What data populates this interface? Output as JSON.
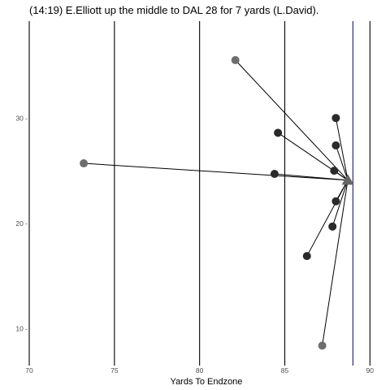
{
  "chart_data": {
    "type": "scatter",
    "title": "(14:19) E.Elliott up the middle to DAL 28 for 7 yards (L.David).",
    "xlabel": "Yards To Endzone",
    "ylabel": "",
    "xlim": [
      70,
      90.7
    ],
    "ylim": [
      6.5,
      39.2
    ],
    "x_ticks": [
      70,
      75,
      80,
      85,
      90
    ],
    "x_tick_labels": [
      "70",
      "75",
      "80",
      "85",
      "90"
    ],
    "y_ticks": [
      10,
      20,
      30
    ],
    "y_tick_labels": [
      "10 -",
      "20 -",
      "30 -"
    ],
    "grid": false,
    "vertical_lines": [
      {
        "x": 70,
        "color": "#000000"
      },
      {
        "x": 75,
        "color": "#000000"
      },
      {
        "x": 80,
        "color": "#000000"
      },
      {
        "x": 85,
        "color": "#000000"
      },
      {
        "x": 89,
        "color": "#1a1a6e"
      },
      {
        "x": 90,
        "color": "#000000"
      }
    ],
    "target": {
      "x": 88.7,
      "y": 24.1,
      "shape": "triangle",
      "color": "#666666"
    },
    "players": [
      {
        "x": 82.1,
        "y": 35.5,
        "color": "#6e6e6e"
      },
      {
        "x": 73.2,
        "y": 25.7,
        "color": "#6e6e6e"
      },
      {
        "x": 87.2,
        "y": 8.4,
        "color": "#6e6e6e"
      },
      {
        "x": 88.0,
        "y": 30.0,
        "color": "#2a2a2a"
      },
      {
        "x": 88.0,
        "y": 27.4,
        "color": "#2a2a2a"
      },
      {
        "x": 84.6,
        "y": 28.6,
        "color": "#2a2a2a"
      },
      {
        "x": 87.9,
        "y": 25.0,
        "color": "#2a2a2a"
      },
      {
        "x": 84.4,
        "y": 24.7,
        "color": "#2a2a2a"
      },
      {
        "x": 88.0,
        "y": 22.1,
        "color": "#2a2a2a"
      },
      {
        "x": 87.8,
        "y": 19.7,
        "color": "#2a2a2a"
      },
      {
        "x": 86.3,
        "y": 16.9,
        "color": "#2a2a2a"
      }
    ]
  }
}
